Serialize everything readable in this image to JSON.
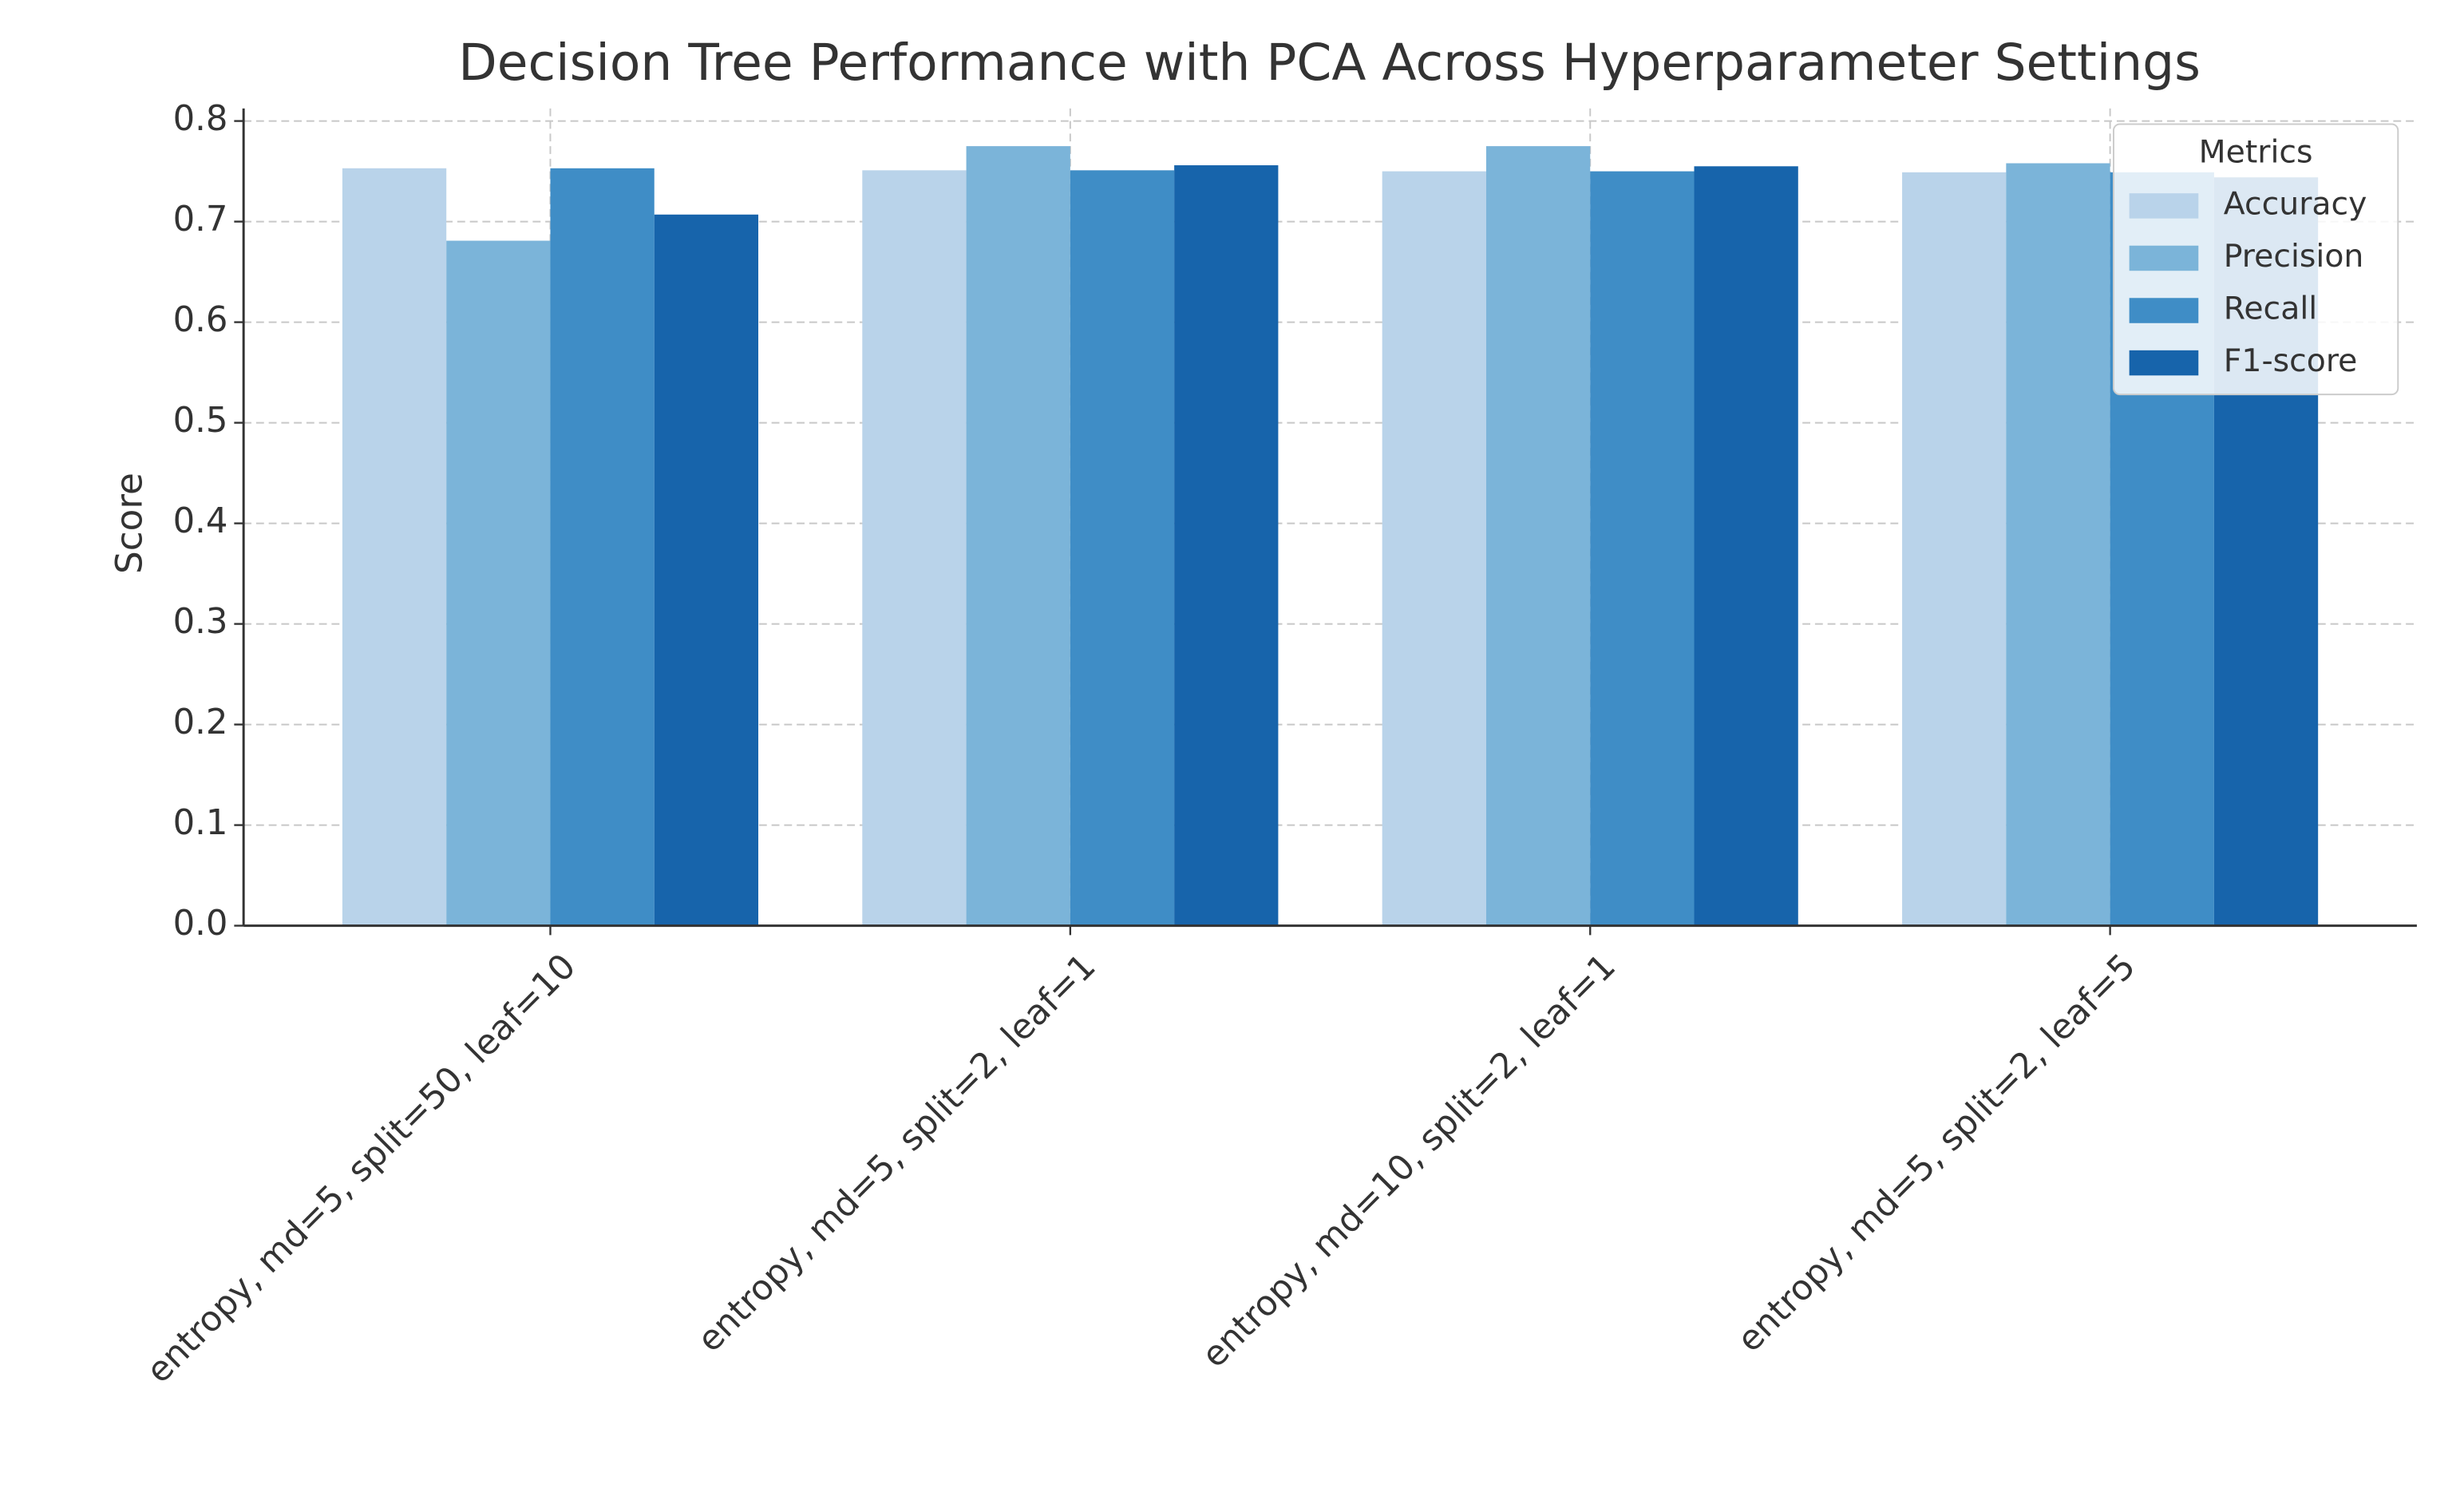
{
  "chart_data": {
    "type": "bar",
    "title": "Decision Tree Performance with PCA Across Hyperparameter Settings",
    "ylabel": "Score",
    "categories": [
      "entropy, md=5, split=50, leaf=10",
      "entropy, md=5, split=2, leaf=1",
      "entropy, md=10, split=2, leaf=1",
      "entropy, md=5, split=2, leaf=5"
    ],
    "series": [
      {
        "name": "Accuracy",
        "color": "#b9d3ea",
        "values": [
          0.753,
          0.751,
          0.75,
          0.749
        ]
      },
      {
        "name": "Precision",
        "color": "#7bb4d9",
        "values": [
          0.681,
          0.775,
          0.775,
          0.758
        ]
      },
      {
        "name": "Recall",
        "color": "#3f8dc6",
        "values": [
          0.753,
          0.751,
          0.75,
          0.749
        ]
      },
      {
        "name": "F1-score",
        "color": "#1764ab",
        "values": [
          0.707,
          0.756,
          0.755,
          0.744
        ]
      }
    ],
    "ylim": [
      0,
      0.8
    ],
    "yticks": [
      {
        "value": 0,
        "label": "0.0"
      },
      0.1,
      0.2,
      0.3,
      0.4,
      0.5,
      0.6,
      0.7,
      0.8
    ],
    "grid": true,
    "legend_title": "Metrics",
    "legend": "upper right"
  }
}
